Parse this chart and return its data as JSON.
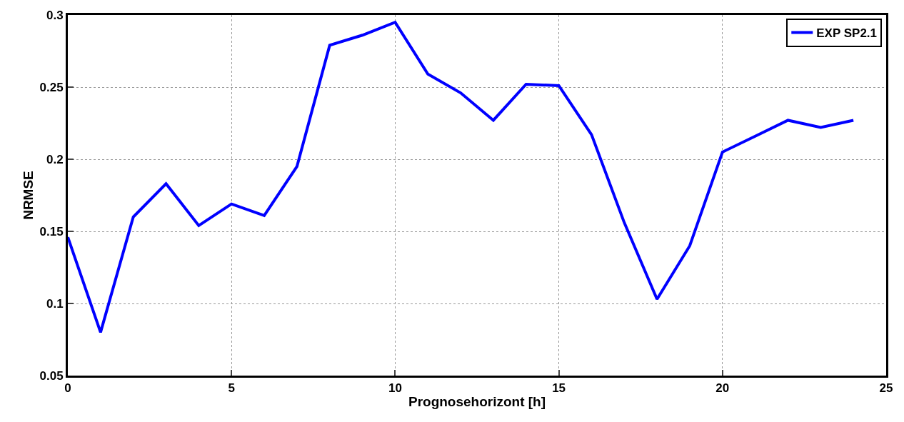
{
  "chart_data": {
    "type": "line",
    "xlabel": "Prognosehorizont [h]",
    "ylabel": "NRMSE",
    "x": [
      0,
      1,
      2,
      3,
      4,
      5,
      6,
      7,
      8,
      9,
      10,
      11,
      12,
      13,
      14,
      15,
      16,
      17,
      18,
      19,
      20,
      21,
      22,
      23,
      24
    ],
    "series": [
      {
        "name": "EXP SP2.1",
        "color": "#0000ff",
        "values": [
          0.146,
          0.08,
          0.16,
          0.183,
          0.154,
          0.169,
          0.161,
          0.195,
          0.279,
          0.286,
          0.295,
          0.259,
          0.246,
          0.227,
          0.252,
          0.251,
          0.217,
          0.156,
          0.103,
          0.14,
          0.205,
          0.216,
          0.227,
          0.222,
          0.227
        ]
      }
    ],
    "xlim": [
      0,
      25
    ],
    "xticks": [
      0,
      5,
      10,
      15,
      20,
      25
    ],
    "ylim": [
      0.05,
      0.3
    ],
    "yticks": [
      0.05,
      0.1,
      0.15,
      0.2,
      0.25,
      0.3
    ],
    "grid": true,
    "legend": "top right",
    "marker": "none",
    "line_style": "solid"
  }
}
